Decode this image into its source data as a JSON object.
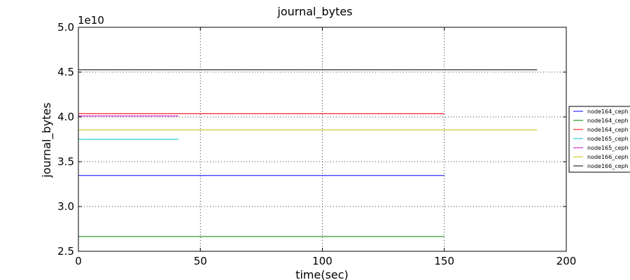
{
  "chart_data": {
    "type": "line",
    "title": "journal_bytes",
    "xlabel": "time(sec)",
    "ylabel": "journal_bytes",
    "y_scale_label": "1e10",
    "xlim": [
      0,
      200
    ],
    "ylim": [
      2.5,
      5.0
    ],
    "x_ticks": [
      "0",
      "50",
      "100",
      "150",
      "200"
    ],
    "y_ticks": [
      "2.5",
      "3.0",
      "3.5",
      "4.0",
      "4.5",
      "5.0"
    ],
    "grid": true,
    "legend_position": "right",
    "series": [
      {
        "name": "node164_ceph",
        "color": "#0000ff",
        "x": [
          0,
          150
        ],
        "y": [
          3.345,
          3.345
        ]
      },
      {
        "name": "node164_ceph",
        "color": "#008000",
        "x": [
          0,
          150
        ],
        "y": [
          2.665,
          2.665
        ]
      },
      {
        "name": "node164_ceph",
        "color": "#ff0000",
        "x": [
          0,
          150
        ],
        "y": [
          4.035,
          4.035
        ]
      },
      {
        "name": "node165_ceph",
        "color": "#00bfbf",
        "x": [
          0,
          41
        ],
        "y": [
          3.75,
          3.75
        ]
      },
      {
        "name": "node165_ceph",
        "color": "#bf00bf",
        "x": [
          0,
          41
        ],
        "y": [
          4.01,
          4.01
        ]
      },
      {
        "name": "node166_ceph",
        "color": "#bfbf00",
        "x": [
          0,
          188
        ],
        "y": [
          3.855,
          3.855
        ]
      },
      {
        "name": "node166_ceph",
        "color": "#000000",
        "x": [
          0,
          188
        ],
        "y": [
          4.525,
          4.525
        ]
      }
    ]
  }
}
